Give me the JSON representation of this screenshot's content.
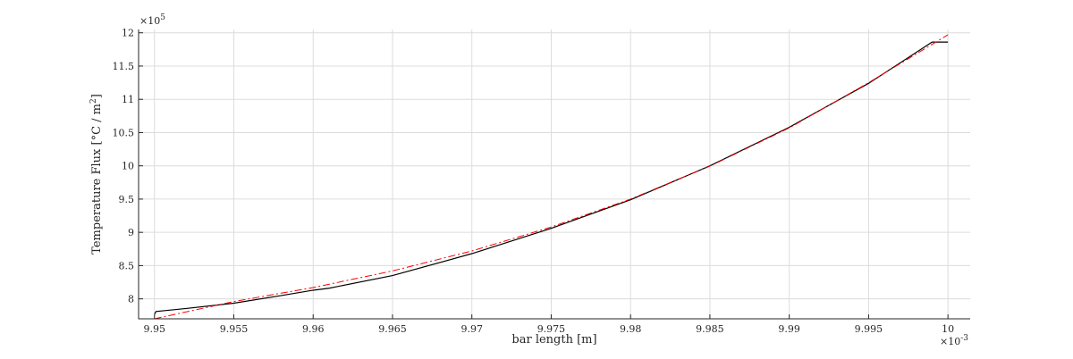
{
  "chart_data": {
    "type": "line",
    "title": "",
    "xlabel": "bar length [m]",
    "ylabel_main": "Temperature Flux [°C / m",
    "ylabel_sup": "2",
    "ylabel_end": "]",
    "x_exponent_base": "×10",
    "x_exponent_power": "-3",
    "y_exponent_base": "×10",
    "y_exponent_power": "5",
    "xlim": [
      9.949,
      10.0014
    ],
    "ylim": [
      7.7,
      12.05
    ],
    "x_ticks": [
      9.95,
      9.955,
      9.96,
      9.965,
      9.97,
      9.975,
      9.98,
      9.985,
      9.99,
      9.995,
      10
    ],
    "x_tick_labels": [
      "9.95",
      "9.955",
      "9.96",
      "9.965",
      "9.97",
      "9.975",
      "9.98",
      "9.985",
      "9.99",
      "9.995",
      "10"
    ],
    "y_ticks": [
      8,
      8.5,
      9,
      9.5,
      10,
      10.5,
      11,
      11.5,
      12
    ],
    "y_tick_labels": [
      "8",
      "8.5",
      "9",
      "9.5",
      "10",
      "10.5",
      "11",
      "11.5",
      "12"
    ],
    "grid": true,
    "series": [
      {
        "color": "#000000",
        "style": "solid",
        "x": [
          9.95,
          9.9501,
          9.952,
          9.955,
          9.958,
          9.96,
          9.961,
          9.965,
          9.97,
          9.975,
          9.98,
          9.985,
          9.99,
          9.995,
          9.999,
          10
        ],
        "y": [
          7.77,
          7.81,
          7.855,
          7.935,
          8.05,
          8.13,
          8.16,
          8.35,
          8.68,
          9.06,
          9.49,
          10.0,
          10.58,
          11.24,
          11.86,
          11.86
        ]
      },
      {
        "color": "#ff0000",
        "style": "dashdot",
        "x": [
          9.95,
          9.955,
          9.96,
          9.965,
          9.97,
          9.975,
          9.98,
          9.985,
          9.99,
          9.995,
          10
        ],
        "y": [
          7.7,
          7.96,
          8.17,
          8.42,
          8.72,
          9.08,
          9.5,
          9.995,
          10.57,
          11.25,
          11.97
        ]
      }
    ]
  }
}
